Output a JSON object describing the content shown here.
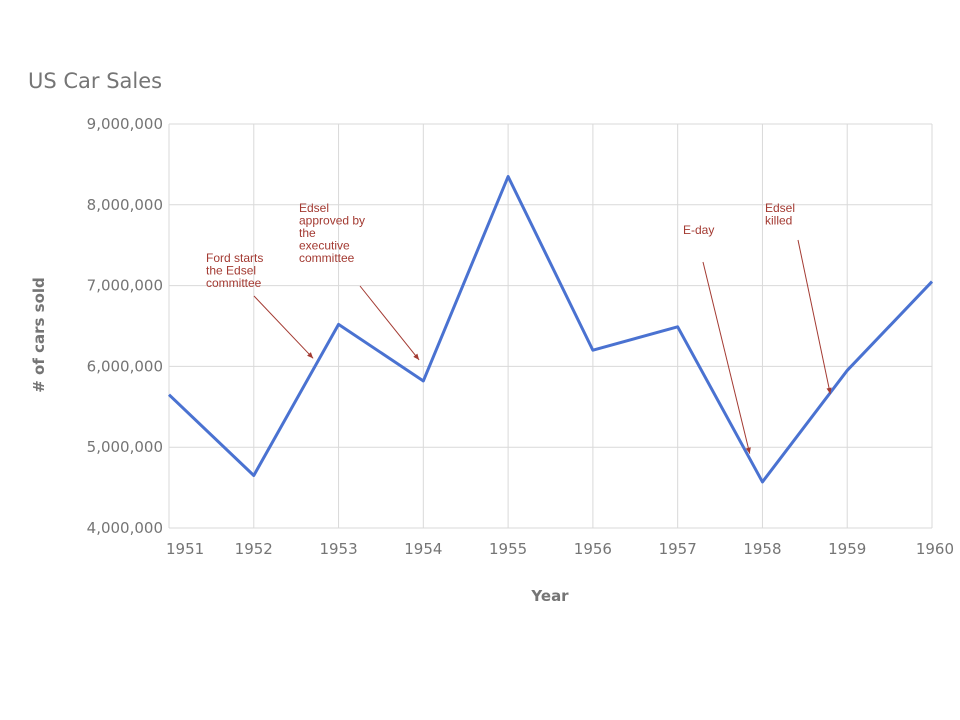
{
  "chart_data": {
    "type": "line",
    "title": "US Car Sales",
    "xlabel": "Year",
    "ylabel": "# of cars sold",
    "categories": [
      "1951",
      "1952",
      "1953",
      "1954",
      "1955",
      "1956",
      "1957",
      "1958",
      "1959",
      "1960"
    ],
    "series": [
      {
        "values": [
          5650000,
          4650000,
          6520000,
          5820000,
          8350000,
          6200000,
          6490000,
          4570000,
          5950000,
          7050000
        ],
        "color": "#4a72d1"
      }
    ],
    "ylim": [
      4000000,
      9000000
    ],
    "yticks": [
      4000000,
      5000000,
      6000000,
      7000000,
      8000000,
      9000000
    ],
    "ytick_labels": [
      "4,000,000",
      "5,000,000",
      "6,000,000",
      "7,000,000",
      "8,000,000",
      "9,000,000"
    ],
    "grid": true,
    "annotations": [
      {
        "lines": [
          "Ford starts",
          "the Edsel",
          "committee"
        ],
        "x": 1952.7,
        "y": 6100000
      },
      {
        "lines": [
          "Edsel",
          "approved by",
          "the",
          "executive",
          "committee"
        ],
        "x": 1953.95,
        "y": 6080000
      },
      {
        "lines": [
          "E-day"
        ],
        "x": 1957.85,
        "y": 4920000
      },
      {
        "lines": [
          "Edsel",
          "killed"
        ],
        "x": 1958.8,
        "y": 5660000
      }
    ]
  }
}
